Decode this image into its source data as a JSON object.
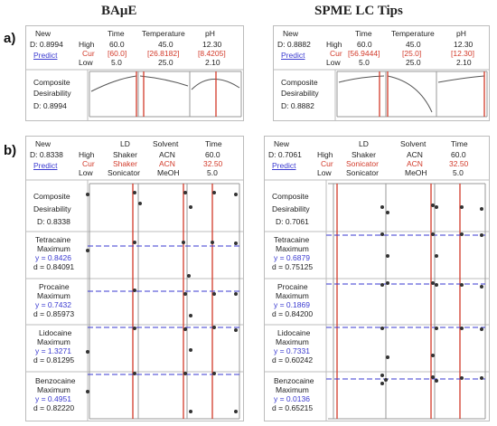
{
  "titles": {
    "left": "BAμE",
    "right": "SPME LC Tips"
  },
  "section_tags": {
    "a": "a)",
    "b": "b)"
  },
  "common": {
    "new": "New",
    "high": "High",
    "cur": "Cur",
    "low": "Low",
    "predict": "Predict",
    "composite_line1": "Composite",
    "composite_line2": "Desirability",
    "maximum": "Maximum"
  },
  "panel_a_left": {
    "d_top": "D: 0.8994",
    "d_bottom": "D: 0.8994",
    "factors": [
      {
        "name": "Time",
        "high": "60.0",
        "cur": "[60.0]",
        "low": "5.0"
      },
      {
        "name": "Temperature",
        "high": "45.0",
        "cur": "[26.8182]",
        "low": "25.0"
      },
      {
        "name": "pH",
        "high": "12.30",
        "cur": "[8.4205]",
        "low": "2.10"
      }
    ]
  },
  "panel_a_right": {
    "d_top": "D: 0.8882",
    "d_bottom": "D: 0.8882",
    "factors": [
      {
        "name": "Time",
        "high": "60.0",
        "cur": "[56.9444]",
        "low": "5.0"
      },
      {
        "name": "Temperature",
        "high": "45.0",
        "cur": "[25.0]",
        "low": "25.0"
      },
      {
        "name": "pH",
        "high": "12.30",
        "cur": "[12.30]",
        "low": "2.10"
      }
    ]
  },
  "panel_b_left": {
    "d_top": "D: 0.8338",
    "composite_d": "D: 0.8338",
    "factors": [
      {
        "name": "LD",
        "high": "Shaker",
        "cur": "Shaker",
        "low": "Sonicator"
      },
      {
        "name": "Solvent",
        "high": "ACN",
        "cur": "ACN",
        "low": "MeOH"
      },
      {
        "name": "Time",
        "high": "60.0",
        "cur": "32.50",
        "low": "5.0"
      }
    ],
    "responses": [
      {
        "name": "Tetracaine",
        "y": "y = 0.8426",
        "d": "d = 0.84091"
      },
      {
        "name": "Procaine",
        "y": "y = 0.7432",
        "d": "d = 0.85973"
      },
      {
        "name": "Lidocaine",
        "y": "y = 1.3271",
        "d": "d = 0.81295"
      },
      {
        "name": "Benzocaine",
        "y": "y = 0.4951",
        "d": "d = 0.82220"
      }
    ]
  },
  "panel_b_right": {
    "d_top": "D: 0.7061",
    "composite_d": "D: 0.7061",
    "factors": [
      {
        "name": "LD",
        "high": "Shaker",
        "cur": "Sonicator",
        "low": "Sonicator"
      },
      {
        "name": "Solvent",
        "high": "ACN",
        "cur": "ACN",
        "low": "MeOH"
      },
      {
        "name": "Time",
        "high": "60.0",
        "cur": "32.50",
        "low": "5.0"
      }
    ],
    "responses": [
      {
        "name": "Tetracaine",
        "y": "y = 0.6879",
        "d": "d = 0.75125"
      },
      {
        "name": "Procaine",
        "y": "y = 0.1869",
        "d": "d = 0.84200"
      },
      {
        "name": "Lidocaine",
        "y": "y = 0.7331",
        "d": "d = 0.60242"
      },
      {
        "name": "Benzocaine",
        "y": "y = 0.0136",
        "d": "d = 0.65215"
      }
    ]
  },
  "chart_data": [
    {
      "type": "line",
      "panel": "a-left",
      "response": "Composite Desirability",
      "series": [
        {
          "factor": "Time",
          "x": [
            5,
            60
          ],
          "y": [
            0.55,
            0.8994
          ]
        },
        {
          "factor": "Temperature",
          "x": [
            25,
            45
          ],
          "y": [
            0.8994,
            0.6
          ]
        },
        {
          "factor": "pH",
          "x": [
            2.1,
            12.3
          ],
          "y": [
            0.45,
            0.6
          ]
        }
      ]
    },
    {
      "type": "line",
      "panel": "a-right",
      "response": "Composite Desirability",
      "series": [
        {
          "factor": "Time",
          "x": [
            5,
            60
          ],
          "y": [
            0.7,
            0.8882
          ]
        },
        {
          "factor": "Temperature",
          "x": [
            25,
            45
          ],
          "y": [
            0.8882,
            0.0
          ]
        },
        {
          "factor": "pH",
          "x": [
            2.1,
            12.3
          ],
          "y": [
            0.7,
            0.8882
          ]
        }
      ]
    },
    {
      "type": "scatter",
      "panel": "b-left",
      "factors": [
        "LD",
        "Solvent",
        "Time"
      ],
      "responses": [
        "Composite Desirability",
        "Tetracaine",
        "Procaine",
        "Lidocaine",
        "Benzocaine"
      ]
    },
    {
      "type": "scatter",
      "panel": "b-right",
      "factors": [
        "LD",
        "Solvent",
        "Time"
      ],
      "responses": [
        "Composite Desirability",
        "Tetracaine",
        "Procaine",
        "Lidocaine",
        "Benzocaine"
      ]
    }
  ]
}
